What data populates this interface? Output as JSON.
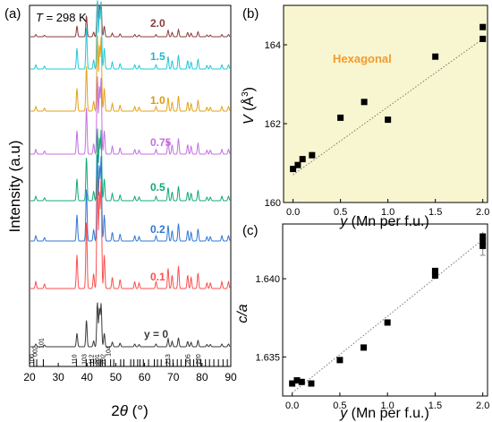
{
  "colors": {
    "curves": [
      "#8b3a3a",
      "#1fc8d8",
      "#e3a21a",
      "#c46fe0",
      "#12a878",
      "#2f78d2",
      "#ff4d4d",
      "#3a3a3a"
    ],
    "label_colors": [
      "#8b3a3a",
      "#1fb6d2",
      "#d99a10",
      "#c46fe0",
      "#12a878",
      "#2f78d2",
      "#ff4d4d",
      "#3a3a3a"
    ],
    "panel_b_bg": "#f8f6d0",
    "annotation": "#f29b2e",
    "points": "#000000"
  },
  "chart_data": [
    {
      "panel": "(a)",
      "type": "line",
      "annotation_title": "T = 298 K",
      "xlabel": "2θ (°)",
      "ylabel": "Intensity (a.u)",
      "xlim": [
        20,
        90
      ],
      "x_ticks": [
        "20",
        "30",
        "40",
        "50",
        "60",
        "70",
        "80",
        "90"
      ],
      "grid": false,
      "legend": "none",
      "series": [
        {
          "label": "2.0"
        },
        {
          "label": "1.5"
        },
        {
          "label": "1.0"
        },
        {
          "label": "0.75"
        },
        {
          "label": "0.5"
        },
        {
          "label": "0.2"
        },
        {
          "label": "0.1"
        },
        {
          "label": "y = 0"
        }
      ],
      "peaks_2theta": [
        22.2,
        25.2,
        36.5,
        39.8,
        42.3,
        43.6,
        44.3,
        44.9,
        46.0,
        48.8,
        51.5,
        56.6,
        58.1,
        64.0,
        68.2,
        69.6,
        71.8,
        75.0,
        76.2,
        78.6,
        81.7,
        82.9,
        86.9,
        89.2
      ],
      "peaks_relative": [
        0.06,
        0.04,
        0.3,
        0.6,
        0.13,
        1.0,
        0.85,
        0.95,
        0.3,
        0.1,
        0.08,
        0.06,
        0.05,
        0.06,
        0.18,
        0.12,
        0.2,
        0.12,
        0.1,
        0.14,
        0.05,
        0.05,
        0.06,
        0.06
      ],
      "peak_scale": [
        0.32,
        0.62,
        0.68,
        0.7,
        0.65,
        0.78,
        1.0,
        0.4
      ],
      "reference_ticks_2theta": [
        21.5,
        22.5,
        24.8,
        36.3,
        39.7,
        41.3,
        42.3,
        43.4,
        44.2,
        44.7,
        45.3,
        46.3,
        48.2,
        49.3,
        51.7,
        52.8,
        55.2,
        56.3,
        57.6,
        58.4,
        59.6,
        61.4,
        63.4,
        64.5,
        65.8,
        67.7,
        68.8,
        69.9,
        71.4,
        72.7,
        74.3,
        75.8,
        77.1,
        78.4,
        79.6,
        81.2,
        82.6,
        84.1,
        85.7,
        87.3,
        88.8
      ],
      "hkl_labels": [
        {
          "text": "100",
          "x": 21.5
        },
        {
          "text": "002",
          "x": 22.6
        },
        {
          "text": "101",
          "x": 24.8
        },
        {
          "text": "110",
          "x": 36.3
        },
        {
          "text": "103",
          "x": 39.8
        },
        {
          "text": "112",
          "x": 42.3
        },
        {
          "text": "201",
          "x": 44.3
        },
        {
          "text": "202",
          "x": 46.3
        },
        {
          "text": "104",
          "x": 48.2
        },
        {
          "text": "213",
          "x": 68.9
        },
        {
          "text": "205",
          "x": 75.9
        },
        {
          "text": "220",
          "x": 79.4
        }
      ]
    },
    {
      "panel": "(b)",
      "type": "scatter",
      "annotation": "Hexagonal",
      "xlabel": "y (Mn per f.u.)",
      "ylabel": "V (Å3)",
      "xlim": [
        -0.1,
        2.05
      ],
      "ylim": [
        160,
        165
      ],
      "x_ticks": [
        "0.0",
        "0.5",
        "1.0",
        "1.5",
        "2.0"
      ],
      "y_ticks": [
        "160",
        "162",
        "164"
      ],
      "x": [
        0,
        0.05,
        0.1,
        0.2,
        0.5,
        0.75,
        1.0,
        1.5,
        2.0,
        2.0
      ],
      "y": [
        160.85,
        160.95,
        161.1,
        161.2,
        162.15,
        162.55,
        162.1,
        163.7,
        164.45,
        164.15
      ],
      "fit_line": {
        "x": [
          0,
          2.0
        ],
        "y": [
          160.7,
          164.15
        ]
      },
      "grid": false,
      "legend": "none"
    },
    {
      "panel": "(c)",
      "type": "scatter",
      "xlabel": "y (Mn per f.u.)",
      "ylabel": "c/a",
      "xlim": [
        -0.1,
        2.05
      ],
      "ylim": [
        1.6325,
        1.6435
      ],
      "x_ticks": [
        "0.0",
        "0.5",
        "1.0",
        "1.5",
        "2.0"
      ],
      "y_ticks": [
        "1.635",
        "1.640"
      ],
      "x": [
        0,
        0.05,
        0.1,
        0.2,
        0.5,
        0.75,
        1.0,
        1.5,
        1.5,
        2.0,
        2.0,
        2.0
      ],
      "y": [
        1.6333,
        1.6335,
        1.6334,
        1.6333,
        1.6348,
        1.6356,
        1.6372,
        1.6402,
        1.6405,
        1.6421,
        1.6424,
        1.6427
      ],
      "error_bars": [
        {
          "x": 2.0,
          "low": 1.6415,
          "high": 1.643
        }
      ],
      "fit_line": {
        "x": [
          0,
          2.0
        ],
        "y": [
          1.6327,
          1.6425
        ]
      },
      "grid": false,
      "legend": "none"
    }
  ]
}
